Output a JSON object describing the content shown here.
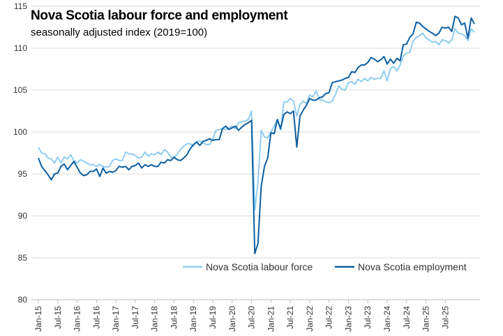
{
  "chart_data": {
    "type": "line",
    "title": "Nova Scotia labour force and employment",
    "subtitle": "seasonally adjusted index (2019=100)",
    "xlabel": "",
    "ylabel": "",
    "ylim": [
      80,
      115
    ],
    "yticks": [
      80,
      85,
      90,
      95,
      100,
      105,
      110,
      115
    ],
    "start_month": "2015-01",
    "x_tick_labels": [
      "Jan-15",
      "Jul-15",
      "Jan-16",
      "Jul-16",
      "Jan-17",
      "Jul-17",
      "Jan-18",
      "Jul-18",
      "Jan-19",
      "Jul-19",
      "Jan-20",
      "Jul-20",
      "Jan-21",
      "Jul-21",
      "Jan-22",
      "Jul-22",
      "Jan-23",
      "Jul-23",
      "Jan-24",
      "Jul-24",
      "Jan-25",
      "Jul-25"
    ],
    "grid": "horizontal",
    "legend": "bottom-right",
    "series": [
      {
        "name": "Nova Scotia labour force",
        "color": "#8fcdf0",
        "values": [
          98.2,
          97.5,
          97.4,
          96.9,
          96.8,
          96.3,
          97.0,
          96.3,
          97.0,
          96.8,
          97.3,
          96.6,
          96.3,
          96.7,
          96.5,
          96.3,
          96.1,
          96.1,
          95.9,
          96.1,
          95.9,
          95.8,
          95.9,
          96.6,
          96.8,
          96.6,
          96.6,
          97.6,
          97.4,
          97.4,
          97.2,
          96.9,
          97.0,
          97.6,
          97.1,
          97.4,
          97.3,
          97.6,
          97.3,
          97.9,
          97.6,
          97.0,
          96.9,
          97.4,
          97.9,
          98.3,
          98.6,
          98.6,
          98.3,
          98.9,
          98.9,
          98.7,
          98.5,
          98.5,
          99.2,
          100.2,
          100.3,
          100.4,
          100.3,
          100.5,
          100.7,
          100.4,
          101.1,
          101.2,
          101.3,
          101.5,
          102.5,
          90.7,
          94.0,
          100.2,
          99.4,
          99.3,
          100.0,
          100.7,
          101.5,
          100.2,
          103.6,
          103.6,
          104.0,
          103.7,
          101.9,
          103.3,
          103.7,
          103.4,
          104.4,
          104.2,
          104.9,
          103.9,
          103.8,
          103.6,
          103.5,
          103.7,
          104.5,
          105.5,
          105.1,
          105.0,
          105.9,
          106.0,
          105.7,
          106.3,
          106.0,
          106.4,
          106.1,
          106.5,
          106.3,
          106.4,
          106.4,
          107.3,
          106.1,
          107.6,
          107.8,
          107.3,
          108.0,
          109.1,
          109.4,
          109.5,
          110.8,
          111.3,
          111.5,
          111.8,
          111.2,
          111.0,
          110.7,
          110.8,
          110.4,
          111.0,
          110.9,
          110.6,
          111.0,
          112.3,
          111.8,
          111.7,
          111.5,
          110.9,
          112.3,
          111.9
        ]
      },
      {
        "name": "Nova Scotia employment",
        "color": "#0c5ea0",
        "values": [
          96.9,
          95.9,
          95.4,
          94.9,
          94.3,
          95.0,
          95.1,
          95.9,
          96.2,
          95.5,
          96.0,
          96.5,
          95.8,
          95.1,
          94.8,
          94.9,
          95.3,
          95.3,
          95.6,
          94.7,
          95.7,
          95.1,
          95.3,
          95.2,
          95.4,
          95.9,
          95.8,
          95.9,
          95.5,
          95.9,
          96.0,
          96.3,
          95.7,
          96.1,
          95.9,
          96.1,
          95.9,
          95.9,
          96.4,
          96.3,
          96.7,
          96.6,
          97.0,
          96.7,
          96.6,
          96.9,
          97.3,
          98.0,
          98.5,
          98.8,
          98.4,
          98.9,
          99.0,
          99.2,
          99.0,
          99.1,
          99.1,
          100.4,
          100.7,
          100.3,
          100.5,
          100.7,
          100.2,
          100.6,
          100.9,
          101.1,
          101.4,
          85.5,
          86.7,
          93.5,
          95.9,
          96.9,
          99.9,
          99.8,
          101.5,
          100.4,
          102.1,
          102.4,
          102.2,
          102.5,
          98.2,
          101.9,
          102.6,
          103.2,
          104.0,
          103.8,
          103.8,
          104.1,
          104.2,
          104.6,
          104.7,
          105.9,
          106.0,
          106.1,
          106.2,
          106.4,
          106.5,
          107.2,
          107.1,
          107.7,
          108.0,
          108.0,
          108.3,
          108.9,
          108.7,
          108.4,
          108.6,
          109.0,
          108.1,
          108.7,
          108.2,
          108.8,
          108.5,
          110.4,
          110.5,
          111.3,
          111.7,
          113.1,
          113.0,
          112.6,
          112.3,
          112.0,
          111.8,
          111.5,
          111.8,
          112.5,
          112.4,
          112.5,
          112.0,
          113.8,
          113.6,
          112.8,
          113.0,
          111.2,
          113.6,
          112.9
        ]
      }
    ]
  }
}
